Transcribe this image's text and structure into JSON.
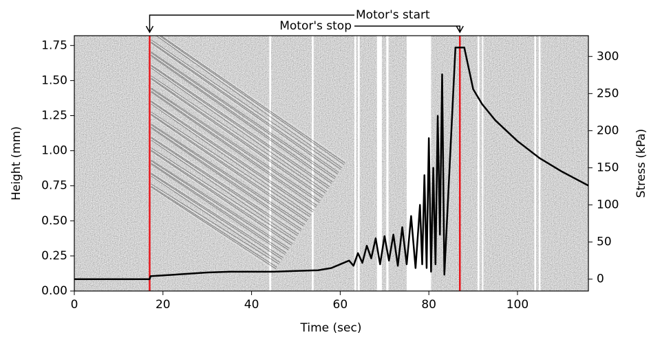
{
  "chart_data": {
    "type": "line",
    "xlabel": "Time (sec)",
    "ylabel": "Height (mm)",
    "y2label": "Stress (kPa)",
    "xlim": [
      0,
      116
    ],
    "xticks": [
      0,
      20,
      40,
      60,
      80,
      100
    ],
    "ylim": [
      0,
      1.82
    ],
    "yticks": [
      {
        "value": 0,
        "label": "0.00"
      },
      {
        "value": 0.25,
        "label": "0.25"
      },
      {
        "value": 0.5,
        "label": "0.50"
      },
      {
        "value": 0.75,
        "label": "0.75"
      },
      {
        "value": 1,
        "label": "1.00"
      },
      {
        "value": 1.25,
        "label": "1.25"
      },
      {
        "value": 1.5,
        "label": "1.50"
      },
      {
        "value": 1.75,
        "label": "1.75"
      }
    ],
    "y2lim": [
      -16,
      328
    ],
    "y2ticks": [
      0,
      50,
      100,
      150,
      200,
      250,
      300
    ],
    "x": [
      0,
      17,
      17.2,
      20,
      25,
      30,
      35,
      40,
      45,
      50,
      55,
      58,
      60,
      62,
      63,
      64,
      65,
      66,
      67,
      68,
      69,
      70,
      71,
      72,
      73,
      74,
      75,
      76,
      77,
      78,
      78.5,
      79,
      79.5,
      80,
      80.5,
      81,
      81.5,
      82,
      82.5,
      83,
      83.5,
      86,
      88,
      90,
      92,
      95,
      100,
      105,
      110,
      116
    ],
    "series": [
      {
        "color": "#000000",
        "axis": "y2",
        "values": [
          0,
          0,
          4,
          5,
          7,
          9,
          10,
          10,
          10,
          11,
          12,
          15,
          20,
          25,
          18,
          35,
          22,
          45,
          28,
          55,
          20,
          58,
          25,
          60,
          18,
          70,
          20,
          85,
          15,
          100,
          20,
          140,
          15,
          190,
          10,
          150,
          20,
          220,
          60,
          276,
          6,
          312,
          312,
          256,
          236,
          214,
          186,
          163,
          145,
          126
        ]
      }
    ],
    "gaps": [
      [
        44,
        44.4
      ],
      [
        53.6,
        54
      ],
      [
        63.2,
        63.6
      ],
      [
        64,
        64.4
      ],
      [
        68.3,
        69.4
      ],
      [
        70.4,
        70.9
      ],
      [
        75,
        80.5
      ],
      [
        91,
        91.4
      ],
      [
        92,
        92.3
      ],
      [
        103.8,
        104.2
      ],
      [
        104.8,
        105.2
      ]
    ],
    "annotations": [
      {
        "text": "Motor's start",
        "x": 17
      },
      {
        "text": "Motor's stop",
        "x": 87
      }
    ],
    "marker_color": "#e8151b"
  }
}
